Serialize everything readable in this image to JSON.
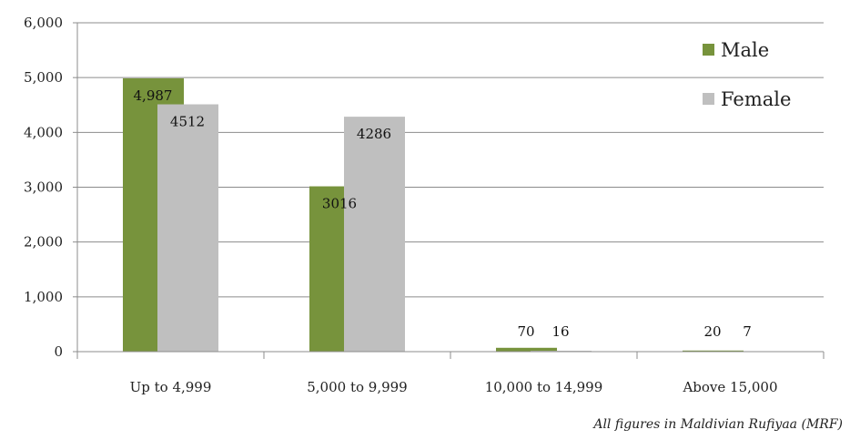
{
  "chart_data": {
    "type": "bar",
    "categories": [
      "Up to 4,999",
      "5,000 to 9,999",
      "10,000 to 14,999",
      "Above 15,000"
    ],
    "series": [
      {
        "name": "Male",
        "values": [
          4987,
          3016,
          70,
          20
        ],
        "labels": [
          "4,987",
          "3016",
          "70",
          "20"
        ],
        "color": "#77933C"
      },
      {
        "name": "Female",
        "values": [
          4512,
          4286,
          16,
          7
        ],
        "labels": [
          "4512",
          "4286",
          "16",
          "7"
        ],
        "color": "#BFBFBF"
      }
    ],
    "ylim": [
      0,
      6000
    ],
    "yticks": [
      0,
      1000,
      2000,
      3000,
      4000,
      5000,
      6000
    ],
    "ytick_labels": [
      "0",
      "1,000",
      "2,000",
      "3,000",
      "4,000",
      "5,000",
      "6,000"
    ],
    "grid": true,
    "legend_position": "top-right"
  },
  "note": "All figures in Maldivian Rufiyaa (MRF)"
}
